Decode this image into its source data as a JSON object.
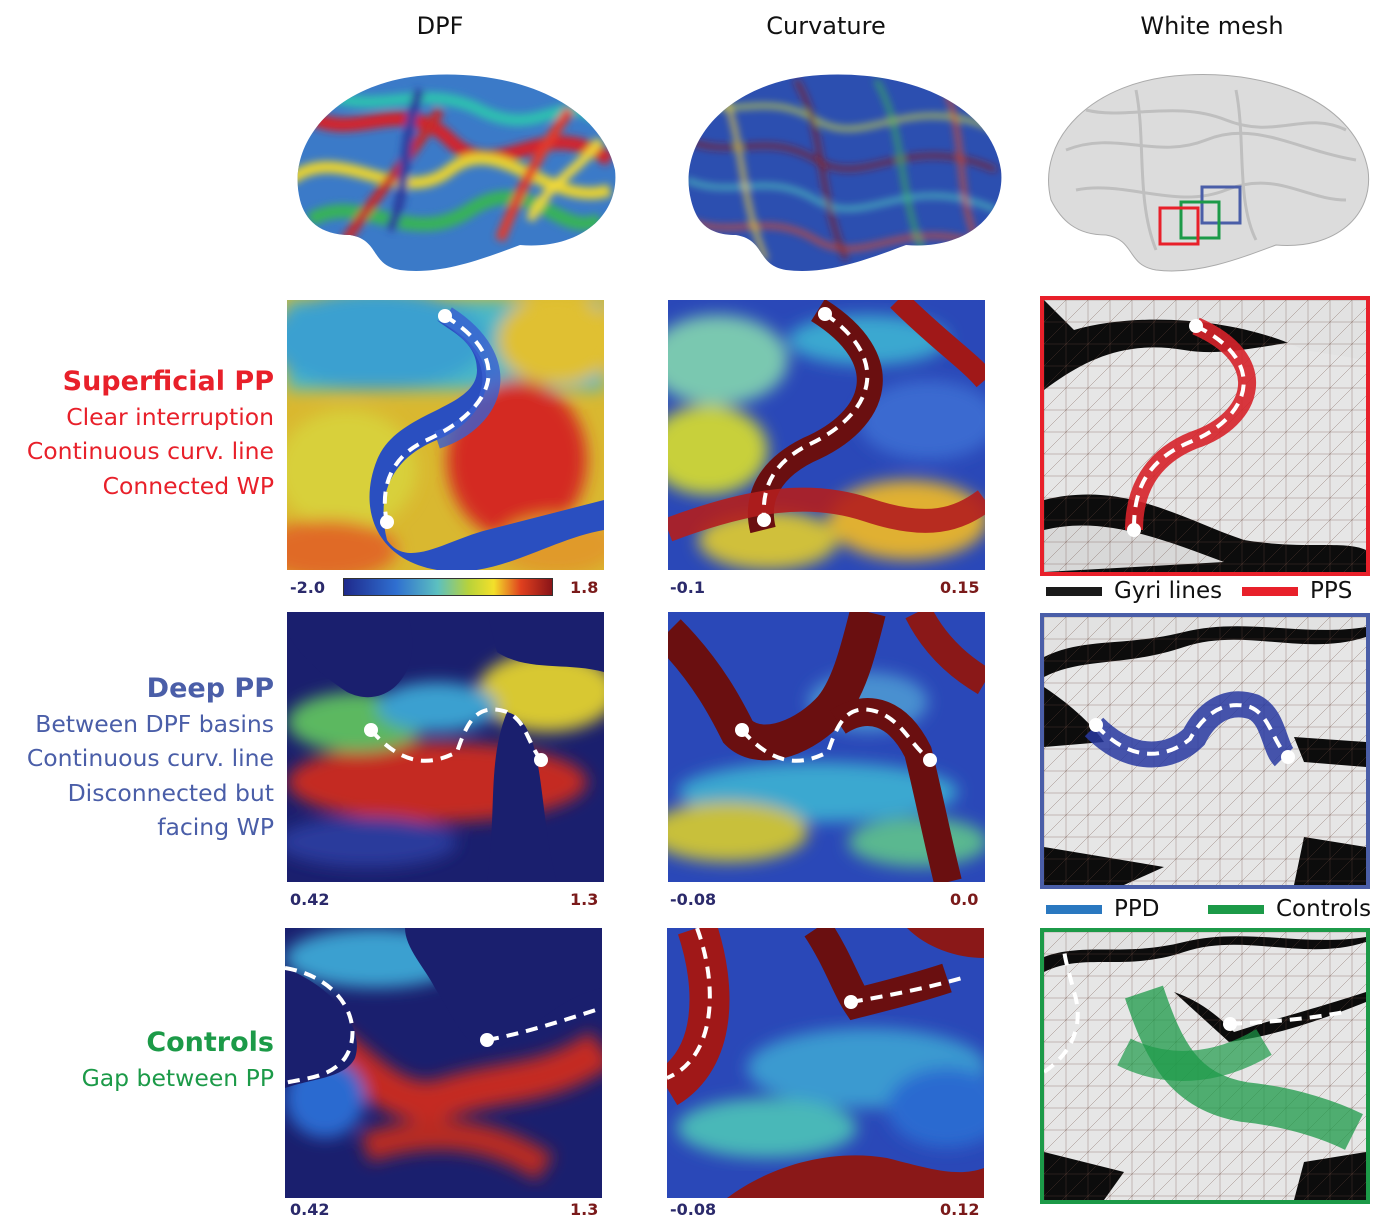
{
  "columns": {
    "dpf": "DPF",
    "curvature": "Curvature",
    "white_mesh": "White mesh"
  },
  "rows": {
    "superficial": {
      "title": "Superficial PP",
      "lines": [
        "Clear interruption",
        "Continuous curv. line",
        "Connected  WP"
      ],
      "color": "#e8202a"
    },
    "deep": {
      "title": "Deep PP",
      "lines": [
        "Between DPF basins",
        "Continuous curv. line",
        "Disconnected but",
        "facing WP"
      ],
      "color": "#4a5ea8"
    },
    "controls": {
      "title": "Controls",
      "lines": [
        "Gap between PP"
      ],
      "color": "#1c9a48"
    }
  },
  "scales": {
    "row1": {
      "dpf_min": "-2.0",
      "dpf_max": "1.8",
      "curv_min": "-0.1",
      "curv_max": "0.15"
    },
    "row2": {
      "dpf_min": "0.42",
      "dpf_max": "1.3",
      "curv_min": "-0.08",
      "curv_max": "0.0"
    },
    "row3": {
      "dpf_min": "0.42",
      "dpf_max": "1.3",
      "curv_min": "-0.08",
      "curv_max": "0.12"
    }
  },
  "legends": {
    "gyri_lines": "Gyri lines",
    "pps": "PPS",
    "ppd": "PPD",
    "controls": "Controls"
  },
  "colors": {
    "gyri": "#1a1a1a",
    "pps": "#e8202a",
    "ppd": "#2a78c0",
    "controls_green": "#1c9a48",
    "deep_blue_frame": "#4a5ea8"
  }
}
